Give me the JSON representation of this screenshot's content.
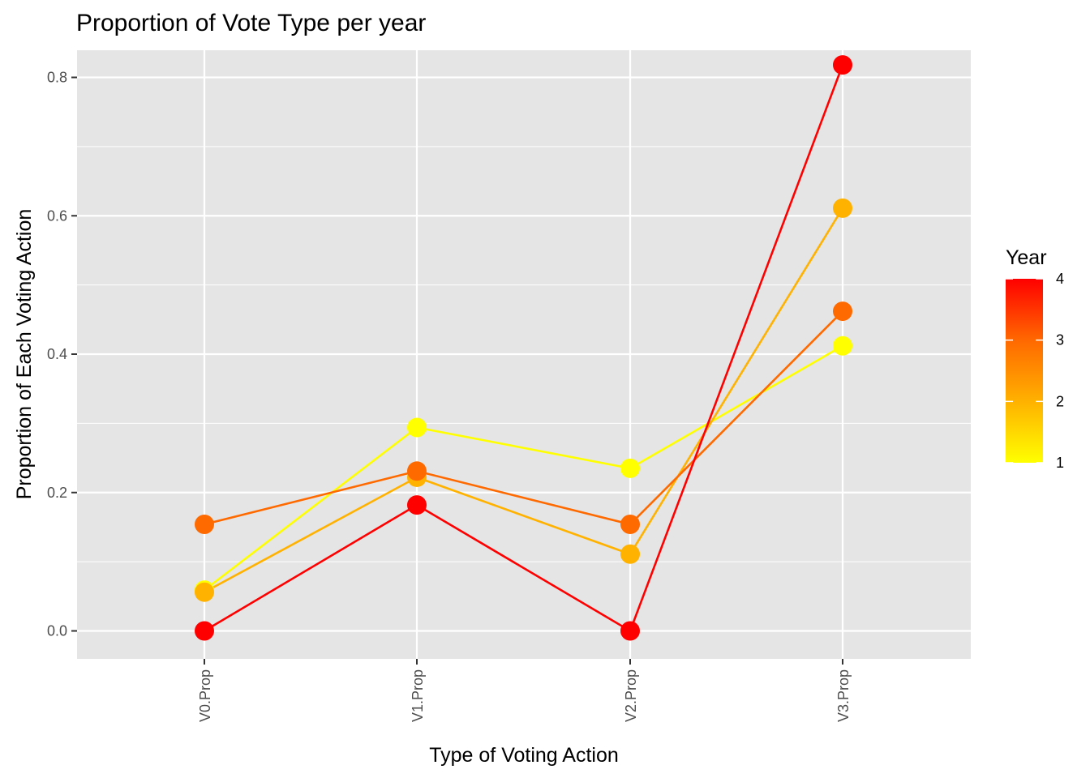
{
  "chart_data": {
    "type": "line",
    "title": "Proportion of Vote Type per year",
    "xlabel": "Type of Voting Action",
    "ylabel": "Proportion of Each Voting Action",
    "categories": [
      "V0.Prop",
      "V1.Prop",
      "V2.Prop",
      "V3.Prop"
    ],
    "ylim": [
      -0.04,
      0.86
    ],
    "yticks": [
      0.0,
      0.2,
      0.4,
      0.6,
      0.8
    ],
    "ytick_labels": [
      "0.0",
      "0.2",
      "0.4",
      "0.6",
      "0.8"
    ],
    "grid": true,
    "panel_background": "#e5e5e5",
    "grid_color": "#ffffff",
    "series": [
      {
        "year": 1,
        "color": "#ffff00",
        "values": [
          0.059,
          0.294,
          0.235,
          0.412
        ]
      },
      {
        "year": 2,
        "color": "#ffb200",
        "values": [
          0.056,
          0.222,
          0.111,
          0.611
        ]
      },
      {
        "year": 3,
        "color": "#ff6a00",
        "values": [
          0.154,
          0.231,
          0.154,
          0.462
        ]
      },
      {
        "year": 4,
        "color": "#ff0000",
        "values": [
          0.0,
          0.182,
          0.0,
          0.818
        ]
      }
    ],
    "legend": {
      "title": "Year",
      "position": "right",
      "type": "colorbar",
      "range": [
        1,
        4
      ],
      "breaks": [
        1,
        2,
        3,
        4
      ],
      "break_labels": [
        "1",
        "2",
        "3",
        "4"
      ],
      "color_low": "#ffff00",
      "color_high": "#ff0000"
    }
  }
}
